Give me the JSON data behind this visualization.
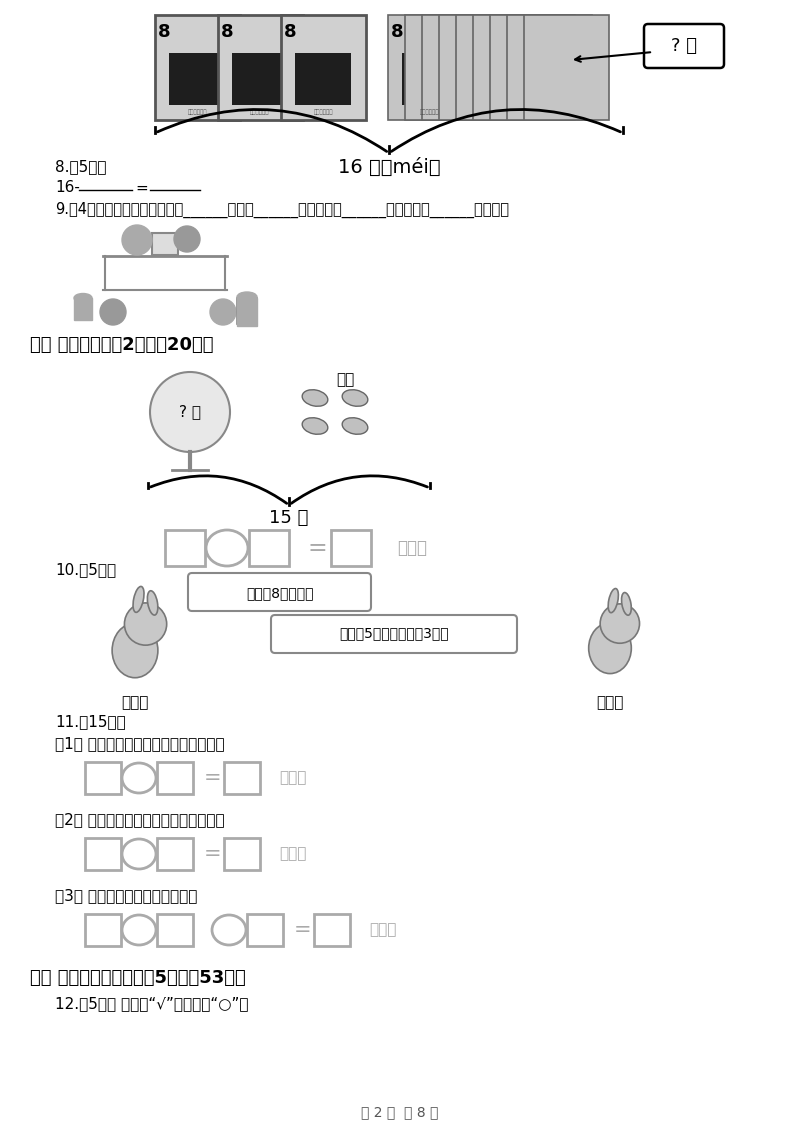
{
  "page_width": 8.0,
  "page_height": 11.32,
  "bg_color": "#ffffff",
  "text_color": "#000000",
  "gray_color": "#888888",
  "light_gray": "#cccccc",
  "title_section2": "二、 看图列式（共2题；內20分）",
  "title_section3": "三、 画一画，圈一圈（共5题；內53分）",
  "q8_label": "8.（5分）",
  "q9_label": "9.（4分）观察下图看看图中有______个球，______个长方体，______个正方体，______个圆柱体",
  "q10_label": "10.（5分）",
  "q11_label": "11.（15分）",
  "q11_1": "（1） 兔妈妈比兔姐姐多吃了几根萝卜？",
  "q11_2": "（2） 兔弟弟比兔姐姐少吃了几根萝卜？",
  "q11_3": "（3） 它们三个共吃了几根萝卜？",
  "q12_label": "12.（5分） 高的画“√”，矮的画“○”。",
  "label_16mei": "16 枚（méi）",
  "label_15zhi": "15 只",
  "label_fei_zou": "飞走",
  "label_tu_mama": "兔妈妈",
  "label_tu_jiejie": "兔姐姐",
  "bubble1": "我吃了8根萝卜。",
  "bubble2": "我吃了5根，弟弟吃了3根。",
  "gen1": "（根）",
  "gen2": "（根）",
  "gen3": "（根）",
  "zhi1": "（只）",
  "footer": "第 2 页  八 8 页"
}
